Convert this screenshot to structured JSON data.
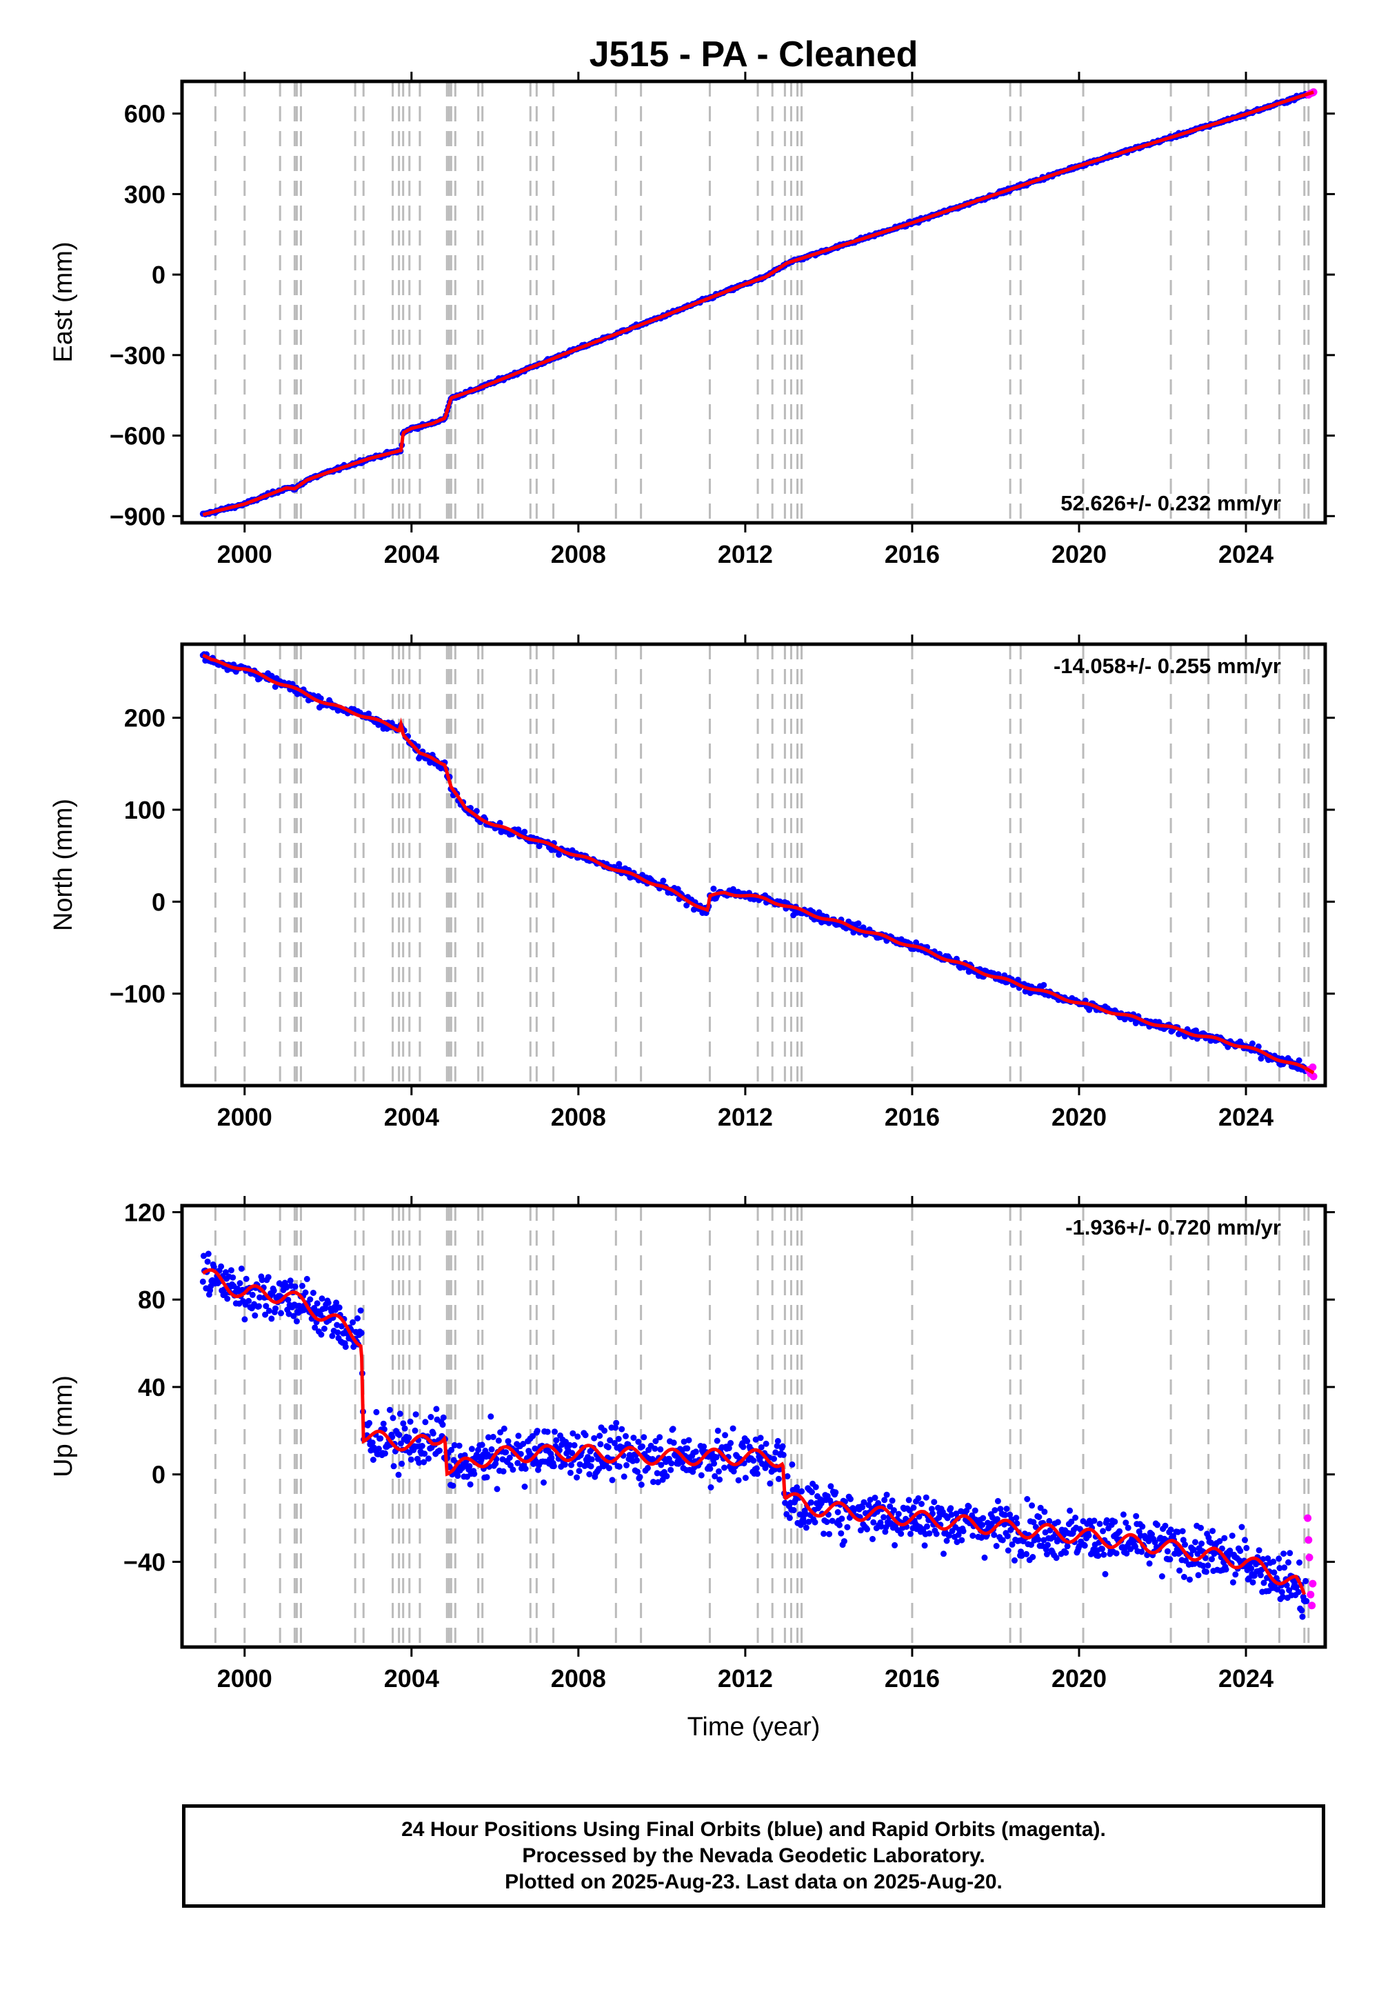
{
  "title": "J515  - PA - Cleaned",
  "xlabel": "Time (year)",
  "colors": {
    "final_orbits": "#0000ff",
    "rapid_orbits": "#ff00ff",
    "model": "#ff0000",
    "steps": "#bbbbbb"
  },
  "caption": {
    "line1": "24 Hour Positions Using Final Orbits (blue) and Rapid Orbits (magenta).",
    "line2": "Processed by the Nevada Geodetic Laboratory.",
    "line3": "Plotted on 2025-Aug-23. Last data on 2025-Aug-20."
  },
  "chart_data": [
    {
      "type": "scatter",
      "name": "east",
      "ylabel": "East (mm)",
      "rate": "52.626+/- 0.232 mm/yr",
      "xlim": [
        1998.5,
        2025.9
      ],
      "ylim": [
        -925,
        720
      ],
      "xticks": [
        2000,
        2004,
        2008,
        2012,
        2016,
        2020,
        2024
      ],
      "yticks": [
        -900,
        -600,
        -300,
        0,
        300,
        600
      ],
      "ytick_labels": [
        "−900",
        "−600",
        "−300",
        "0",
        "300",
        "600"
      ],
      "model": {
        "x": [
          1999.0,
          1999.3,
          2000.0,
          2001.0,
          2001.2,
          2001.5,
          2002.0,
          2003.0,
          2003.75,
          2003.8,
          2004.0,
          2004.5,
          2004.8,
          2004.95,
          2005.5,
          2006.0,
          2008.0,
          2010.0,
          2012.0,
          2012.5,
          2013.0,
          2016.0,
          2020.0,
          2024.0,
          2025.62
        ],
        "y": [
          -895,
          -882,
          -855,
          -795,
          -798,
          -765,
          -737,
          -685,
          -655,
          -590,
          -573,
          -555,
          -535,
          -460,
          -430,
          -400,
          -275,
          -157,
          -35,
          -8,
          43,
          193,
          405,
          598,
          680
        ]
      },
      "rapid": {
        "x": [
          2025.5,
          2025.55,
          2025.6,
          2025.62
        ],
        "y": [
          670,
          675,
          678,
          680
        ]
      }
    },
    {
      "type": "scatter",
      "name": "north",
      "ylabel": "North (mm)",
      "rate": "-14.058+/- 0.255 mm/yr",
      "xlim": [
        1998.5,
        2025.9
      ],
      "ylim": [
        -200,
        280
      ],
      "xticks": [
        2000,
        2004,
        2008,
        2012,
        2016,
        2020,
        2024
      ],
      "yticks": [
        -100,
        0,
        100,
        200
      ],
      "ytick_labels": [
        "−100",
        "0",
        "100",
        "200"
      ],
      "model": {
        "x": [
          1999.0,
          1999.2,
          2000.0,
          2001.0,
          2002.0,
          2003.0,
          2003.7,
          2003.75,
          2003.8,
          2004.2,
          2004.5,
          2004.8,
          2004.95,
          2005.3,
          2006.0,
          2008.0,
          2010.0,
          2011.1,
          2011.15,
          2011.5,
          2012.5,
          2013.0,
          2016.0,
          2018.0,
          2020.0,
          2022.0,
          2024.0,
          2025.62
        ],
        "y": [
          268,
          262,
          253,
          235,
          215,
          200,
          187,
          195,
          183,
          160,
          156,
          150,
          125,
          100,
          83,
          50,
          17,
          -10,
          5,
          10,
          3,
          -5,
          -48,
          -82,
          -110,
          -135,
          -158,
          -185
        ]
      },
      "rapid": {
        "x": [
          2025.5,
          2025.55,
          2025.6,
          2025.62
        ],
        "y": [
          -183,
          -187,
          -180,
          -190
        ]
      }
    },
    {
      "type": "scatter",
      "name": "up",
      "ylabel": "Up (mm)",
      "rate": "-1.936+/- 0.720 mm/yr",
      "xlim": [
        1998.5,
        2025.9
      ],
      "ylim": [
        -79,
        123
      ],
      "xticks": [
        2000,
        2004,
        2008,
        2012,
        2016,
        2020,
        2024
      ],
      "yticks": [
        -40,
        0,
        40,
        80,
        120
      ],
      "ytick_labels": [
        "−40",
        "0",
        "40",
        "80",
        "120"
      ],
      "model": {
        "x": [
          1999.0,
          2000.0,
          2001.0,
          2002.0,
          2002.8,
          2002.85,
          2003.5,
          2004.5,
          2004.8,
          2004.85,
          2005.0,
          2006.0,
          2008.0,
          2010.0,
          2012.0,
          2012.9,
          2012.95,
          2013.5,
          2016.0,
          2020.0,
          2022.0,
          2024.0,
          2025.2,
          2025.4
        ],
        "y": [
          92,
          83,
          82,
          72,
          62,
          18,
          15,
          14,
          20,
          3,
          2,
          9,
          10,
          8,
          8,
          7,
          -10,
          -15,
          -20,
          -28,
          -33,
          -40,
          -50,
          -57
        ]
      },
      "rapid": {
        "x": [
          2025.48,
          2025.5,
          2025.52,
          2025.55,
          2025.58,
          2025.6
        ],
        "y": [
          -20,
          -30,
          -38,
          -55,
          -60,
          -50
        ]
      }
    }
  ],
  "steps": [
    1999.3,
    2000.0,
    2000.85,
    2001.2,
    2001.25,
    2001.35,
    2002.65,
    2002.85,
    2003.55,
    2003.7,
    2003.8,
    2003.95,
    2004.2,
    2004.85,
    2004.9,
    2004.95,
    2005.05,
    2005.6,
    2005.7,
    2006.85,
    2007.0,
    2007.4,
    2008.9,
    2009.5,
    2011.15,
    2012.3,
    2012.65,
    2012.95,
    2013.1,
    2013.25,
    2013.35,
    2016.0,
    2018.35,
    2018.6,
    2020.1,
    2022.2,
    2023.1,
    2024.0,
    2024.8,
    2025.4,
    2025.5
  ]
}
